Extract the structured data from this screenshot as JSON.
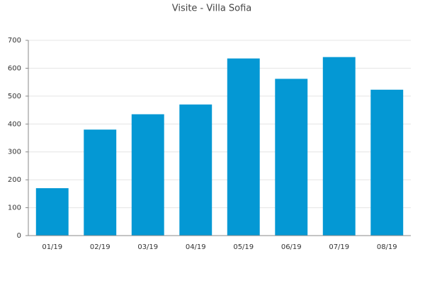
{
  "chart_data": {
    "type": "bar",
    "title": "Visite - Villa Sofia",
    "categories": [
      "01/19",
      "02/19",
      "03/19",
      "04/19",
      "05/19",
      "06/19",
      "07/19",
      "08/19"
    ],
    "values": [
      170,
      380,
      435,
      470,
      635,
      562,
      640,
      523
    ],
    "color": "#0498d4",
    "ylim": [
      0,
      700
    ],
    "yticks": [
      0,
      100,
      200,
      300,
      400,
      500,
      600,
      700
    ],
    "grid": true
  }
}
